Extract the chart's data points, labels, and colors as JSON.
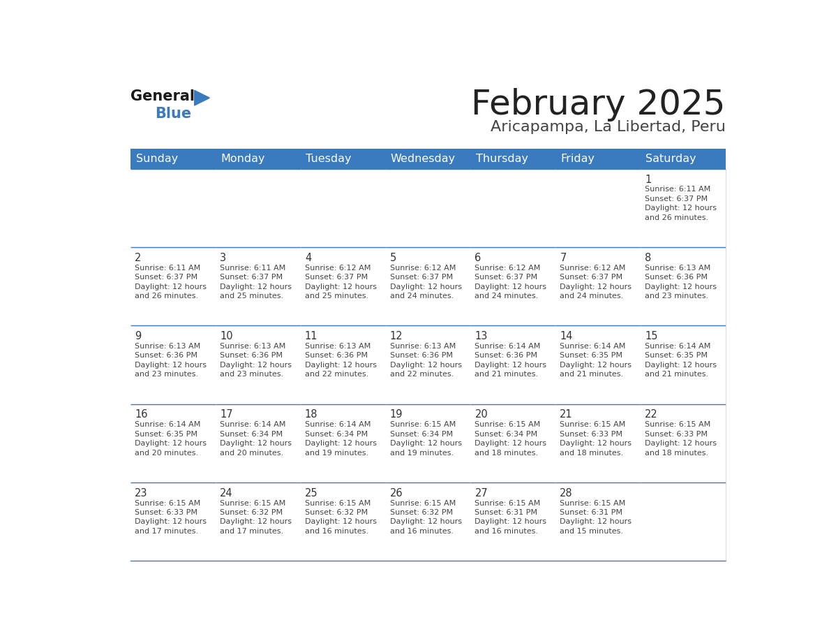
{
  "title": "February 2025",
  "subtitle": "Aricapampa, La Libertad, Peru",
  "days_of_week": [
    "Sunday",
    "Monday",
    "Tuesday",
    "Wednesday",
    "Thursday",
    "Friday",
    "Saturday"
  ],
  "header_color": "#3a7abf",
  "header_text_color": "#ffffff",
  "cell_bg": "#ffffff",
  "border_color": "#3a7abf",
  "day_number_color": "#333333",
  "cell_text_color": "#444444",
  "title_color": "#222222",
  "subtitle_color": "#444444",
  "calendar_data": [
    [
      null,
      null,
      null,
      null,
      null,
      null,
      {
        "day": 1,
        "sunrise": "6:11 AM",
        "sunset": "6:37 PM",
        "daylight": "12 hours",
        "daylight2": "and 26 minutes."
      }
    ],
    [
      {
        "day": 2,
        "sunrise": "6:11 AM",
        "sunset": "6:37 PM",
        "daylight": "12 hours",
        "daylight2": "and 26 minutes."
      },
      {
        "day": 3,
        "sunrise": "6:11 AM",
        "sunset": "6:37 PM",
        "daylight": "12 hours",
        "daylight2": "and 25 minutes."
      },
      {
        "day": 4,
        "sunrise": "6:12 AM",
        "sunset": "6:37 PM",
        "daylight": "12 hours",
        "daylight2": "and 25 minutes."
      },
      {
        "day": 5,
        "sunrise": "6:12 AM",
        "sunset": "6:37 PM",
        "daylight": "12 hours",
        "daylight2": "and 24 minutes."
      },
      {
        "day": 6,
        "sunrise": "6:12 AM",
        "sunset": "6:37 PM",
        "daylight": "12 hours",
        "daylight2": "and 24 minutes."
      },
      {
        "day": 7,
        "sunrise": "6:12 AM",
        "sunset": "6:37 PM",
        "daylight": "12 hours",
        "daylight2": "and 24 minutes."
      },
      {
        "day": 8,
        "sunrise": "6:13 AM",
        "sunset": "6:36 PM",
        "daylight": "12 hours",
        "daylight2": "and 23 minutes."
      }
    ],
    [
      {
        "day": 9,
        "sunrise": "6:13 AM",
        "sunset": "6:36 PM",
        "daylight": "12 hours",
        "daylight2": "and 23 minutes."
      },
      {
        "day": 10,
        "sunrise": "6:13 AM",
        "sunset": "6:36 PM",
        "daylight": "12 hours",
        "daylight2": "and 23 minutes."
      },
      {
        "day": 11,
        "sunrise": "6:13 AM",
        "sunset": "6:36 PM",
        "daylight": "12 hours",
        "daylight2": "and 22 minutes."
      },
      {
        "day": 12,
        "sunrise": "6:13 AM",
        "sunset": "6:36 PM",
        "daylight": "12 hours",
        "daylight2": "and 22 minutes."
      },
      {
        "day": 13,
        "sunrise": "6:14 AM",
        "sunset": "6:36 PM",
        "daylight": "12 hours",
        "daylight2": "and 21 minutes."
      },
      {
        "day": 14,
        "sunrise": "6:14 AM",
        "sunset": "6:35 PM",
        "daylight": "12 hours",
        "daylight2": "and 21 minutes."
      },
      {
        "day": 15,
        "sunrise": "6:14 AM",
        "sunset": "6:35 PM",
        "daylight": "12 hours",
        "daylight2": "and 21 minutes."
      }
    ],
    [
      {
        "day": 16,
        "sunrise": "6:14 AM",
        "sunset": "6:35 PM",
        "daylight": "12 hours",
        "daylight2": "and 20 minutes."
      },
      {
        "day": 17,
        "sunrise": "6:14 AM",
        "sunset": "6:34 PM",
        "daylight": "12 hours",
        "daylight2": "and 20 minutes."
      },
      {
        "day": 18,
        "sunrise": "6:14 AM",
        "sunset": "6:34 PM",
        "daylight": "12 hours",
        "daylight2": "and 19 minutes."
      },
      {
        "day": 19,
        "sunrise": "6:15 AM",
        "sunset": "6:34 PM",
        "daylight": "12 hours",
        "daylight2": "and 19 minutes."
      },
      {
        "day": 20,
        "sunrise": "6:15 AM",
        "sunset": "6:34 PM",
        "daylight": "12 hours",
        "daylight2": "and 18 minutes."
      },
      {
        "day": 21,
        "sunrise": "6:15 AM",
        "sunset": "6:33 PM",
        "daylight": "12 hours",
        "daylight2": "and 18 minutes."
      },
      {
        "day": 22,
        "sunrise": "6:15 AM",
        "sunset": "6:33 PM",
        "daylight": "12 hours",
        "daylight2": "and 18 minutes."
      }
    ],
    [
      {
        "day": 23,
        "sunrise": "6:15 AM",
        "sunset": "6:33 PM",
        "daylight": "12 hours",
        "daylight2": "and 17 minutes."
      },
      {
        "day": 24,
        "sunrise": "6:15 AM",
        "sunset": "6:32 PM",
        "daylight": "12 hours",
        "daylight2": "and 17 minutes."
      },
      {
        "day": 25,
        "sunrise": "6:15 AM",
        "sunset": "6:32 PM",
        "daylight": "12 hours",
        "daylight2": "and 16 minutes."
      },
      {
        "day": 26,
        "sunrise": "6:15 AM",
        "sunset": "6:32 PM",
        "daylight": "12 hours",
        "daylight2": "and 16 minutes."
      },
      {
        "day": 27,
        "sunrise": "6:15 AM",
        "sunset": "6:31 PM",
        "daylight": "12 hours",
        "daylight2": "and 16 minutes."
      },
      {
        "day": 28,
        "sunrise": "6:15 AM",
        "sunset": "6:31 PM",
        "daylight": "12 hours",
        "daylight2": "and 15 minutes."
      },
      null
    ]
  ]
}
